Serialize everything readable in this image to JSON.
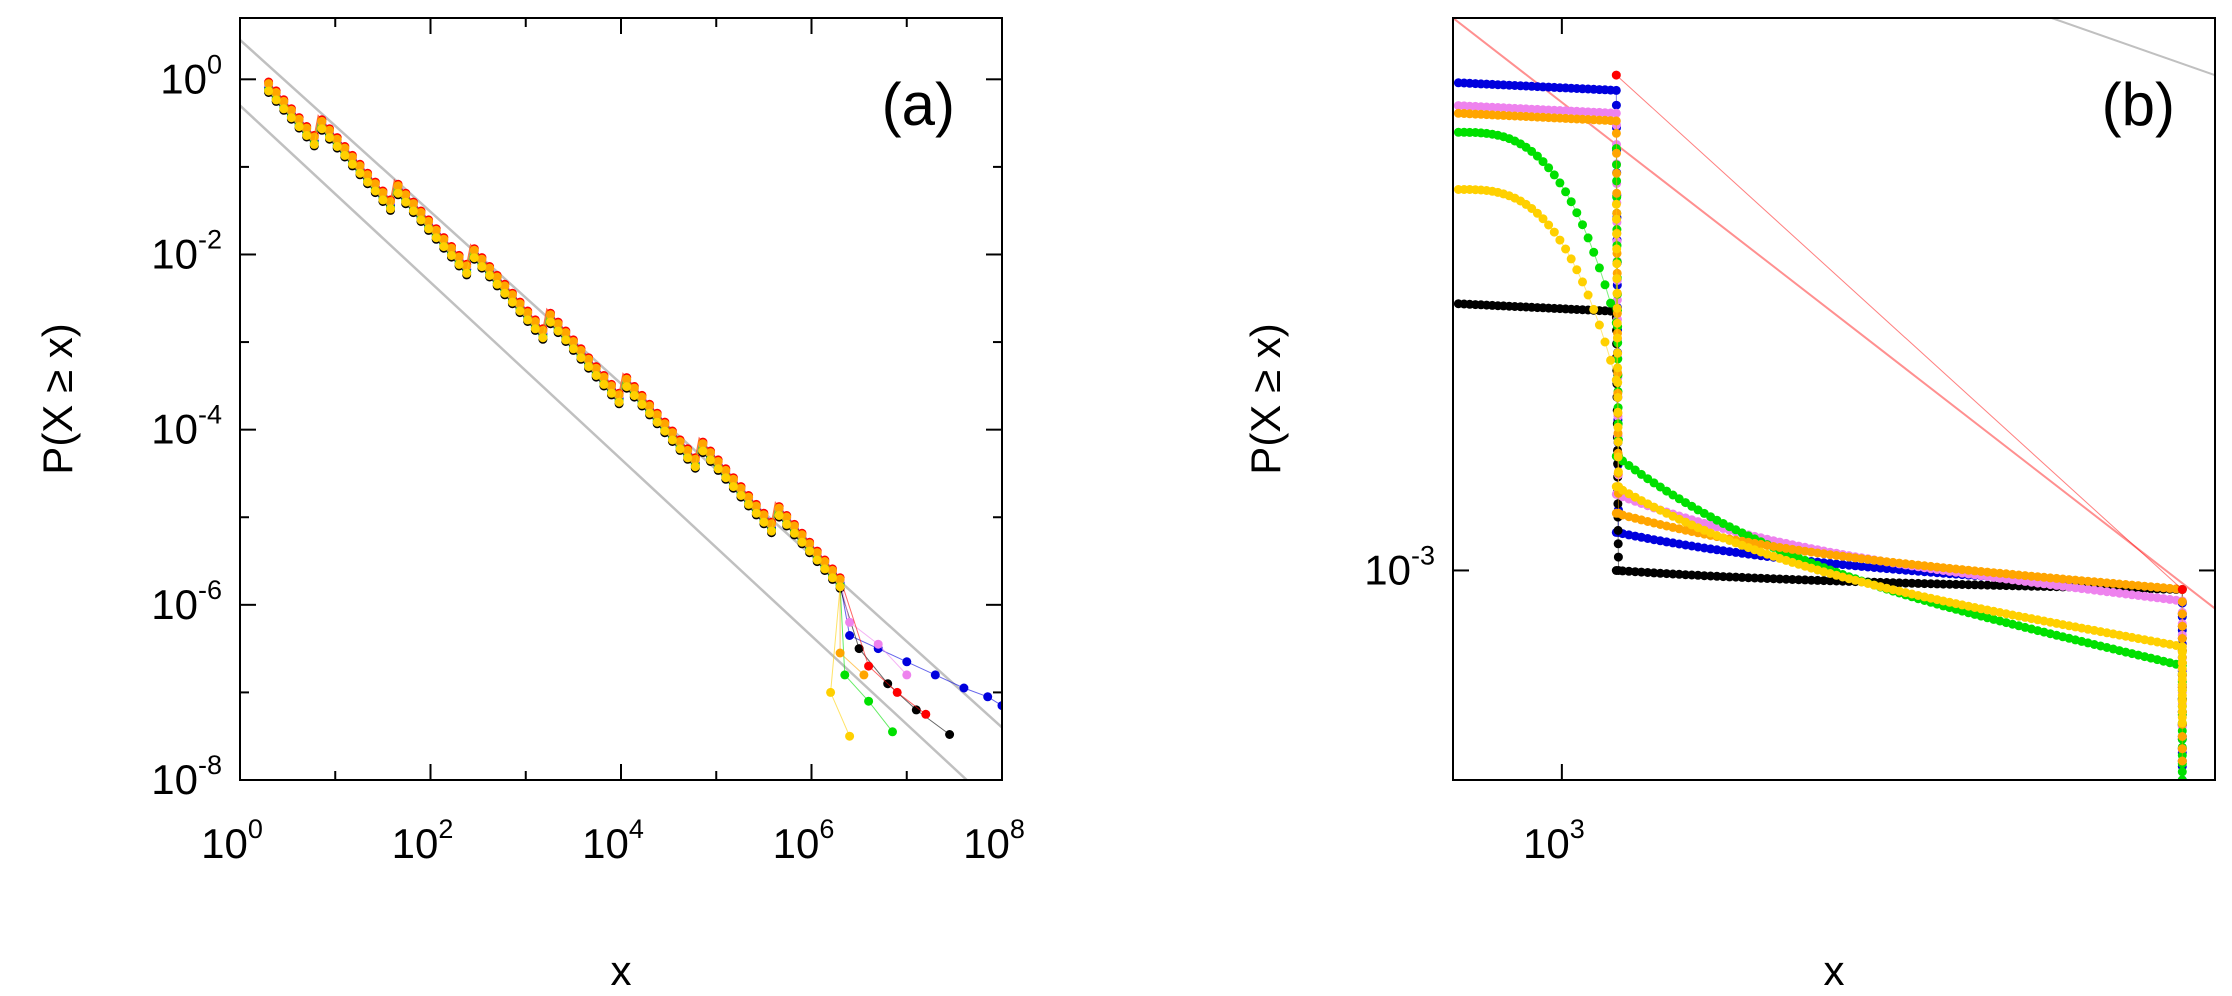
{
  "chart_data": [
    {
      "type": "scatter",
      "panel_label": "(a)",
      "xscale": "log10",
      "yscale": "log10",
      "xlim_exp": [
        0,
        8
      ],
      "ylim_exp": [
        -8,
        0.7
      ],
      "xlabel": "x",
      "ylabel": "P(X ≥ x)",
      "x_ticks": [
        {
          "base": "10",
          "exp": "0",
          "value": 0
        },
        {
          "base": "10",
          "exp": "2",
          "value": 2
        },
        {
          "base": "10",
          "exp": "4",
          "value": 4
        },
        {
          "base": "10",
          "exp": "6",
          "value": 6
        },
        {
          "base": "10",
          "exp": "8",
          "value": 8
        }
      ],
      "y_ticks": [
        {
          "base": "10",
          "exp": "0",
          "value": 0
        },
        {
          "base": "10",
          "exp": "-2",
          "value": -2
        },
        {
          "base": "10",
          "exp": "-4",
          "value": -4
        },
        {
          "base": "10",
          "exp": "-6",
          "value": -6
        },
        {
          "base": "10",
          "exp": "-8",
          "value": -8
        }
      ],
      "reference_lines": [
        {
          "color": "#c0c0c0",
          "points": [
            [
              0,
              0.45
            ],
            [
              8,
              -7.4
            ]
          ]
        },
        {
          "color": "#c0c0c0",
          "points": [
            [
              0,
              -0.3
            ],
            [
              7.63,
              -8
            ]
          ]
        }
      ],
      "series": [
        {
          "name": "blue",
          "color": "#0000dd",
          "staircase": true,
          "offset": 0.05,
          "tail": [
            [
              6.4,
              -6.35
            ],
            [
              6.7,
              -6.5
            ],
            [
              7.0,
              -6.65
            ],
            [
              7.3,
              -6.8
            ],
            [
              7.6,
              -6.95
            ],
            [
              7.85,
              -7.05
            ],
            [
              8.0,
              -7.15
            ]
          ]
        },
        {
          "name": "black",
          "color": "#000000",
          "staircase": true,
          "offset": -0.05,
          "tail": [
            [
              6.5,
              -6.5
            ],
            [
              6.8,
              -6.9
            ],
            [
              7.1,
              -7.2
            ],
            [
              7.45,
              -7.48
            ]
          ]
        },
        {
          "name": "violet",
          "color": "#ee82ee",
          "staircase": true,
          "offset": 0.1,
          "tail": [
            [
              6.4,
              -6.2
            ],
            [
              6.7,
              -6.45
            ],
            [
              7.0,
              -6.8
            ]
          ]
        },
        {
          "name": "green",
          "color": "#00e000",
          "staircase": true,
          "offset": 0.0,
          "tail": [
            [
              6.35,
              -6.8
            ],
            [
              6.6,
              -7.1
            ],
            [
              6.85,
              -7.45
            ]
          ]
        },
        {
          "name": "red",
          "color": "#ff0000",
          "staircase": true,
          "offset": 0.15,
          "tail": [
            [
              6.6,
              -6.7
            ],
            [
              6.9,
              -7.0
            ],
            [
              7.2,
              -7.25
            ]
          ]
        },
        {
          "name": "orange",
          "color": "#ffa500",
          "staircase": true,
          "offset": 0.12,
          "tail": [
            [
              6.3,
              -6.55
            ],
            [
              6.55,
              -6.8
            ]
          ]
        },
        {
          "name": "gold",
          "color": "#ffd000",
          "staircase": true,
          "offset": -0.02,
          "tail": [
            [
              6.2,
              -7.0
            ],
            [
              6.4,
              -7.5
            ]
          ]
        }
      ]
    },
    {
      "type": "scatter",
      "panel_label": "(b)",
      "xscale": "log10",
      "yscale": "log10",
      "xlim_exp": [
        2.9,
        3.6
      ],
      "ylim_exp": [
        -3.55,
        -1.55
      ],
      "xlabel": "x",
      "ylabel": "P(X ≥ x)",
      "x_ticks": [
        {
          "base": "10",
          "exp": "3",
          "value": 3
        }
      ],
      "y_ticks": [
        {
          "base": "10",
          "exp": "-3",
          "value": -3
        }
      ],
      "reference_lines": [
        {
          "color": "#ff9090",
          "points": [
            [
              2.9,
              -1.55
            ],
            [
              3.6,
              -3.1
            ]
          ]
        },
        {
          "color": "#c0c0c0",
          "points": [
            [
              3.45,
              -1.55
            ],
            [
              3.6,
              -1.7
            ]
          ]
        }
      ],
      "series": [
        {
          "name": "blue",
          "color": "#0000dd",
          "x_jump": 3.05,
          "plateau_hi": -1.72,
          "plateau_lo_start": -2.9,
          "plateau_lo_end": -3.05,
          "x_end": 3.57,
          "drop_to": -3.55
        },
        {
          "name": "black",
          "color": "#000000",
          "x_jump": 3.05,
          "plateau_hi": -2.3,
          "plateau_lo_start": -3.0,
          "plateau_lo_end": -3.05,
          "x_end": 3.57,
          "drop_to": -3.5
        },
        {
          "name": "violet",
          "color": "#ee82ee",
          "x_jump": 3.05,
          "plateau_hi": -1.78,
          "plateau_lo_start": -2.8,
          "plateau_lo_end": -3.08,
          "x_end": 3.57,
          "drop_to": -3.5
        },
        {
          "name": "green",
          "color": "#00e000",
          "x_jump": 3.05,
          "plateau_hi": -1.85,
          "plateau_lo_start": -2.7,
          "plateau_lo_end": -3.25,
          "x_end": 3.57,
          "drop_to": -3.55
        },
        {
          "name": "orange",
          "color": "#ffa500",
          "x_jump": 3.05,
          "plateau_hi": -1.8,
          "plateau_lo_start": -2.85,
          "plateau_lo_end": -3.05,
          "x_end": 3.57,
          "drop_to": -3.5
        },
        {
          "name": "gold",
          "color": "#ffd000",
          "x_jump": 3.05,
          "plateau_hi": -2.0,
          "plateau_lo_start": -2.78,
          "plateau_lo_end": -3.2,
          "x_end": 3.57,
          "drop_to": -3.4
        },
        {
          "name": "red",
          "color": "#ff0000",
          "x_jump": 3.05,
          "plateau_hi": -1.7,
          "plateau_lo_start": -3.05,
          "plateau_lo_end": -3.05,
          "x_end": 3.57,
          "drop_to": -3.05,
          "only_endpoints": true
        }
      ]
    }
  ]
}
